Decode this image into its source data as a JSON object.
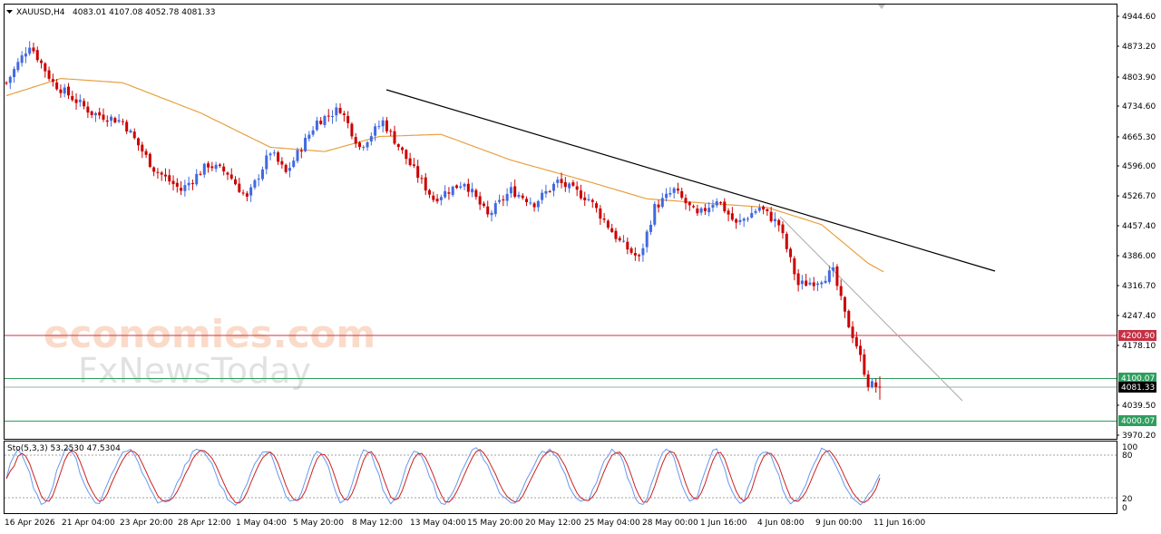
{
  "header": {
    "symbol": "XAUUSD,H4",
    "ohlc": "4083.01 4107.08 4052.78 4081.33"
  },
  "watermark": {
    "line1": "economies.com",
    "line2": "FxNewsToday"
  },
  "price_axis": {
    "ticks": [
      "4944.60",
      "4873.20",
      "4803.90",
      "4734.60",
      "4665.30",
      "4596.00",
      "4526.70",
      "4457.40",
      "4386.00",
      "4316.70",
      "4247.40",
      "4178.10",
      "4039.50",
      "3970.20"
    ]
  },
  "badges": {
    "resistance": "4200.90",
    "support_upper": "4100.07",
    "current": "4081.33",
    "support_lower": "4000.07"
  },
  "colors": {
    "bull": "#4169E1",
    "bear": "#CC0000",
    "ma": "#E8A040",
    "trend": "#000000",
    "resistance_line": "#CC3344",
    "support_line": "#2E9E5E",
    "stoch_k": "#6699EE",
    "stoch_d": "#CC2222"
  },
  "oscillator": {
    "label": "Sto(5,3,3) 53.2530 47.5304",
    "ticks": [
      "100",
      "80",
      "20",
      "0"
    ]
  },
  "time_axis": {
    "labels": [
      "16 Apr 2026",
      "21 Apr 04:00",
      "23 Apr 20:00",
      "28 Apr 12:00",
      "1 May 04:00",
      "5 May 20:00",
      "8 May 12:00",
      "13 May 04:00",
      "15 May 20:00",
      "20 May 12:00",
      "25 May 04:00",
      "28 May 00:00",
      "1 Jun 16:00",
      "4 Jun 08:00",
      "9 Jun 00:00",
      "11 Jun 16:00"
    ]
  },
  "chart_data": {
    "type": "candlestick",
    "title": "XAUUSD,H4",
    "last_bar": {
      "open": 4083.01,
      "high": 4107.08,
      "low": 4052.78,
      "close": 4081.33
    },
    "ylim": [
      3950,
      4965
    ],
    "key_path": [
      {
        "bar": 0,
        "price": 4790
      },
      {
        "bar": 6,
        "price": 4880
      },
      {
        "bar": 12,
        "price": 4790
      },
      {
        "bar": 22,
        "price": 4720
      },
      {
        "bar": 30,
        "price": 4700
      },
      {
        "bar": 38,
        "price": 4590
      },
      {
        "bar": 45,
        "price": 4540
      },
      {
        "bar": 52,
        "price": 4600
      },
      {
        "bar": 57,
        "price": 4580
      },
      {
        "bar": 62,
        "price": 4520
      },
      {
        "bar": 68,
        "price": 4630
      },
      {
        "bar": 72,
        "price": 4580
      },
      {
        "bar": 80,
        "price": 4700
      },
      {
        "bar": 86,
        "price": 4730
      },
      {
        "bar": 91,
        "price": 4640
      },
      {
        "bar": 97,
        "price": 4700
      },
      {
        "bar": 104,
        "price": 4600
      },
      {
        "bar": 110,
        "price": 4520
      },
      {
        "bar": 118,
        "price": 4560
      },
      {
        "bar": 124,
        "price": 4480
      },
      {
        "bar": 130,
        "price": 4540
      },
      {
        "bar": 136,
        "price": 4510
      },
      {
        "bar": 142,
        "price": 4560
      },
      {
        "bar": 150,
        "price": 4520
      },
      {
        "bar": 158,
        "price": 4420
      },
      {
        "bar": 163,
        "price": 4380
      },
      {
        "bar": 167,
        "price": 4500
      },
      {
        "bar": 172,
        "price": 4540
      },
      {
        "bar": 178,
        "price": 4480
      },
      {
        "bar": 183,
        "price": 4520
      },
      {
        "bar": 188,
        "price": 4460
      },
      {
        "bar": 194,
        "price": 4500
      },
      {
        "bar": 199,
        "price": 4460
      },
      {
        "bar": 204,
        "price": 4320
      },
      {
        "bar": 209,
        "price": 4330
      },
      {
        "bar": 213,
        "price": 4350
      },
      {
        "bar": 216,
        "price": 4250
      },
      {
        "bar": 219,
        "price": 4180
      },
      {
        "bar": 222,
        "price": 4090
      },
      {
        "bar": 225,
        "price": 4081.33
      }
    ],
    "moving_average": [
      {
        "bar": 0,
        "price": 4760
      },
      {
        "bar": 14,
        "price": 4800
      },
      {
        "bar": 30,
        "price": 4790
      },
      {
        "bar": 50,
        "price": 4720
      },
      {
        "bar": 68,
        "price": 4640
      },
      {
        "bar": 82,
        "price": 4630
      },
      {
        "bar": 96,
        "price": 4665
      },
      {
        "bar": 112,
        "price": 4670
      },
      {
        "bar": 130,
        "price": 4610
      },
      {
        "bar": 150,
        "price": 4560
      },
      {
        "bar": 165,
        "price": 4520
      },
      {
        "bar": 180,
        "price": 4510
      },
      {
        "bar": 196,
        "price": 4500
      },
      {
        "bar": 210,
        "price": 4460
      },
      {
        "bar": 222,
        "price": 4370
      },
      {
        "bar": 226,
        "price": 4350
      }
    ],
    "trendlines": [
      {
        "from": {
          "bar": 98,
          "price": 4775
        },
        "to": {
          "bar": 258,
          "price": 4355
        }
      },
      {
        "from": {
          "bar": 200,
          "price": 4460
        },
        "to": {
          "bar": 250,
          "price": 4070
        }
      }
    ],
    "horizontal_levels": [
      4200.9,
      4100.07,
      4081.33,
      4000.07
    ],
    "stochastic": {
      "k": 53.253,
      "d": 47.5304,
      "levels": [
        80,
        20
      ],
      "ylim": [
        0,
        100
      ]
    }
  }
}
